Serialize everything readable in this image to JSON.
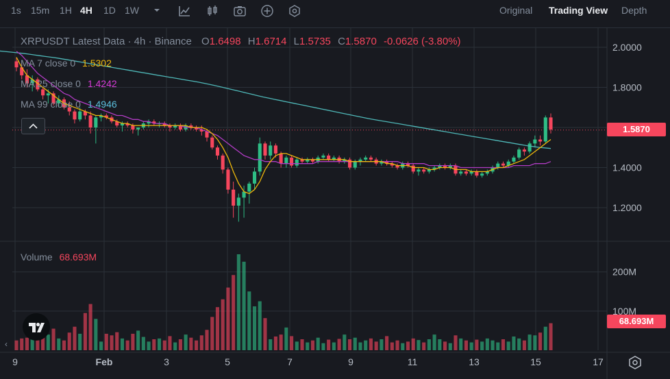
{
  "toolbar": {
    "intervals": [
      "1s",
      "15m",
      "1H",
      "4H",
      "1D",
      "1W"
    ],
    "active_interval": "4H",
    "views": [
      "Original",
      "Trading View",
      "Depth"
    ],
    "active_view": "Trading View"
  },
  "legend": {
    "title": "XRPUSDT Latest Data · 4h · Binance",
    "o_label": "O",
    "o": "1.6498",
    "h_label": "H",
    "h": "1.6714",
    "l_label": "L",
    "l": "1.5735",
    "c_label": "C",
    "c": "1.5870",
    "change": "-0.0626 (-3.80%)"
  },
  "ma": [
    {
      "label": "MA 7 close 0",
      "value": "1.5302",
      "color": "#f0b90b"
    },
    {
      "label": "MA 25 close 0",
      "value": "1.4242",
      "color": "#d63ad6"
    },
    {
      "label": "MA 99 close 0",
      "value": "1.4946",
      "color": "#5bc0de"
    }
  ],
  "volume": {
    "label": "Volume",
    "value": "68.693M"
  },
  "price_axis": [
    "2.0000",
    "1.8000",
    "1.6000",
    "1.4000",
    "1.2000"
  ],
  "current_price": "1.5870",
  "volume_axis": [
    "200M",
    "100M"
  ],
  "volume_tag": "68.693M",
  "x_axis": [
    "9",
    "Feb",
    "3",
    "5",
    "7",
    "9",
    "11",
    "13",
    "15",
    "17"
  ],
  "colors": {
    "up": "#2ebd85",
    "down": "#f6465d",
    "ma7": "#f0b90b",
    "ma25": "#b13cc4",
    "ma99": "#4fb8b8"
  },
  "chart_data": {
    "type": "candlestick",
    "symbol": "XRPUSDT",
    "interval": "4h",
    "ylim": [
      1.05,
      2.07
    ],
    "volume_ylim": [
      0,
      245
    ],
    "volume_unit": "M",
    "x_date_range": [
      "Jan 29",
      "Feb 15"
    ],
    "candles": [
      [
        1.93,
        1.95,
        1.88,
        1.9,
        25
      ],
      [
        1.9,
        1.92,
        1.84,
        1.86,
        30
      ],
      [
        1.86,
        1.89,
        1.8,
        1.82,
        32
      ],
      [
        1.82,
        1.86,
        1.78,
        1.84,
        40
      ],
      [
        1.84,
        1.85,
        1.78,
        1.79,
        35
      ],
      [
        1.79,
        1.8,
        1.74,
        1.76,
        52
      ],
      [
        1.76,
        1.79,
        1.72,
        1.77,
        40
      ],
      [
        1.77,
        1.78,
        1.71,
        1.72,
        55
      ],
      [
        1.72,
        1.76,
        1.7,
        1.74,
        30
      ],
      [
        1.74,
        1.75,
        1.69,
        1.7,
        25
      ],
      [
        1.7,
        1.73,
        1.66,
        1.68,
        45
      ],
      [
        1.68,
        1.69,
        1.62,
        1.64,
        60
      ],
      [
        1.64,
        1.7,
        1.63,
        1.68,
        42
      ],
      [
        1.68,
        1.69,
        1.64,
        1.66,
        95
      ],
      [
        1.66,
        1.68,
        1.57,
        1.6,
        118
      ],
      [
        1.6,
        1.66,
        1.52,
        1.65,
        80
      ],
      [
        1.65,
        1.67,
        1.63,
        1.66,
        22
      ],
      [
        1.66,
        1.67,
        1.64,
        1.65,
        42
      ],
      [
        1.65,
        1.66,
        1.62,
        1.63,
        38
      ],
      [
        1.63,
        1.64,
        1.6,
        1.61,
        46
      ],
      [
        1.61,
        1.63,
        1.58,
        1.62,
        30
      ],
      [
        1.62,
        1.63,
        1.6,
        1.61,
        25
      ],
      [
        1.61,
        1.62,
        1.57,
        1.59,
        42
      ],
      [
        1.59,
        1.6,
        1.56,
        1.6,
        50
      ],
      [
        1.6,
        1.63,
        1.59,
        1.62,
        34
      ],
      [
        1.62,
        1.64,
        1.6,
        1.63,
        22
      ],
      [
        1.63,
        1.64,
        1.61,
        1.62,
        28
      ],
      [
        1.62,
        1.63,
        1.6,
        1.62,
        30
      ],
      [
        1.62,
        1.63,
        1.6,
        1.61,
        25
      ],
      [
        1.61,
        1.62,
        1.58,
        1.6,
        36
      ],
      [
        1.6,
        1.62,
        1.59,
        1.61,
        20
      ],
      [
        1.61,
        1.62,
        1.58,
        1.59,
        28
      ],
      [
        1.59,
        1.62,
        1.58,
        1.61,
        40
      ],
      [
        1.61,
        1.62,
        1.59,
        1.6,
        32
      ],
      [
        1.6,
        1.61,
        1.58,
        1.59,
        25
      ],
      [
        1.59,
        1.61,
        1.56,
        1.58,
        38
      ],
      [
        1.58,
        1.59,
        1.53,
        1.55,
        52
      ],
      [
        1.55,
        1.56,
        1.49,
        1.5,
        85
      ],
      [
        1.5,
        1.51,
        1.44,
        1.46,
        110
      ],
      [
        1.46,
        1.47,
        1.37,
        1.39,
        130
      ],
      [
        1.39,
        1.4,
        1.27,
        1.29,
        160
      ],
      [
        1.29,
        1.33,
        1.15,
        1.21,
        192
      ],
      [
        1.21,
        1.27,
        1.13,
        1.25,
        245
      ],
      [
        1.25,
        1.31,
        1.15,
        1.28,
        226
      ],
      [
        1.28,
        1.33,
        1.22,
        1.32,
        150
      ],
      [
        1.32,
        1.4,
        1.29,
        1.38,
        112
      ],
      [
        1.38,
        1.55,
        1.36,
        1.52,
        125
      ],
      [
        1.52,
        1.53,
        1.44,
        1.46,
        82
      ],
      [
        1.46,
        1.53,
        1.44,
        1.51,
        28
      ],
      [
        1.51,
        1.52,
        1.45,
        1.47,
        35
      ],
      [
        1.47,
        1.48,
        1.4,
        1.42,
        40
      ],
      [
        1.42,
        1.46,
        1.4,
        1.45,
        58
      ],
      [
        1.45,
        1.46,
        1.4,
        1.41,
        36
      ],
      [
        1.41,
        1.45,
        1.4,
        1.44,
        22
      ],
      [
        1.44,
        1.45,
        1.42,
        1.43,
        28
      ],
      [
        1.43,
        1.45,
        1.42,
        1.44,
        20
      ],
      [
        1.44,
        1.45,
        1.42,
        1.43,
        25
      ],
      [
        1.43,
        1.46,
        1.42,
        1.45,
        32
      ],
      [
        1.45,
        1.47,
        1.44,
        1.46,
        18
      ],
      [
        1.46,
        1.47,
        1.43,
        1.44,
        27
      ],
      [
        1.44,
        1.46,
        1.43,
        1.45,
        20
      ],
      [
        1.45,
        1.46,
        1.42,
        1.43,
        29
      ],
      [
        1.43,
        1.45,
        1.42,
        1.44,
        40
      ],
      [
        1.44,
        1.45,
        1.39,
        1.4,
        28
      ],
      [
        1.4,
        1.44,
        1.39,
        1.43,
        32
      ],
      [
        1.43,
        1.45,
        1.41,
        1.44,
        20
      ],
      [
        1.44,
        1.46,
        1.43,
        1.45,
        25
      ],
      [
        1.45,
        1.46,
        1.43,
        1.44,
        30
      ],
      [
        1.44,
        1.45,
        1.41,
        1.42,
        22
      ],
      [
        1.42,
        1.44,
        1.41,
        1.43,
        28
      ],
      [
        1.43,
        1.44,
        1.41,
        1.42,
        36
      ],
      [
        1.42,
        1.43,
        1.4,
        1.41,
        20
      ],
      [
        1.41,
        1.42,
        1.39,
        1.4,
        25
      ],
      [
        1.4,
        1.43,
        1.39,
        1.42,
        18
      ],
      [
        1.42,
        1.43,
        1.4,
        1.41,
        22
      ],
      [
        1.41,
        1.42,
        1.37,
        1.38,
        30
      ],
      [
        1.38,
        1.4,
        1.36,
        1.39,
        26
      ],
      [
        1.39,
        1.4,
        1.37,
        1.38,
        20
      ],
      [
        1.38,
        1.4,
        1.37,
        1.39,
        28
      ],
      [
        1.39,
        1.41,
        1.38,
        1.4,
        40
      ],
      [
        1.4,
        1.42,
        1.39,
        1.41,
        28
      ],
      [
        1.41,
        1.42,
        1.39,
        1.4,
        22
      ],
      [
        1.4,
        1.42,
        1.39,
        1.41,
        18
      ],
      [
        1.41,
        1.42,
        1.36,
        1.37,
        38
      ],
      [
        1.37,
        1.39,
        1.36,
        1.38,
        30
      ],
      [
        1.38,
        1.39,
        1.36,
        1.37,
        25
      ],
      [
        1.37,
        1.39,
        1.36,
        1.38,
        20
      ],
      [
        1.38,
        1.39,
        1.35,
        1.36,
        27
      ],
      [
        1.36,
        1.38,
        1.35,
        1.37,
        22
      ],
      [
        1.37,
        1.39,
        1.36,
        1.38,
        30
      ],
      [
        1.38,
        1.41,
        1.37,
        1.4,
        25
      ],
      [
        1.4,
        1.43,
        1.39,
        1.42,
        20
      ],
      [
        1.42,
        1.43,
        1.4,
        1.41,
        28
      ],
      [
        1.41,
        1.44,
        1.4,
        1.43,
        22
      ],
      [
        1.43,
        1.46,
        1.42,
        1.45,
        35
      ],
      [
        1.45,
        1.5,
        1.44,
        1.49,
        30
      ],
      [
        1.49,
        1.5,
        1.46,
        1.48,
        25
      ],
      [
        1.48,
        1.53,
        1.47,
        1.52,
        40
      ],
      [
        1.52,
        1.56,
        1.5,
        1.54,
        38
      ],
      [
        1.54,
        1.56,
        1.51,
        1.53,
        45
      ],
      [
        1.53,
        1.66,
        1.52,
        1.65,
        60
      ],
      [
        1.65,
        1.67,
        1.57,
        1.59,
        69
      ]
    ],
    "ma7": [
      1.95,
      1.9,
      1.86,
      1.84,
      1.82,
      1.8,
      1.78,
      1.76,
      1.74,
      1.72,
      1.71,
      1.7,
      1.69,
      1.68,
      1.67,
      1.66,
      1.66,
      1.65,
      1.64,
      1.63,
      1.62,
      1.62,
      1.61,
      1.61,
      1.61,
      1.61,
      1.61,
      1.61,
      1.61,
      1.61,
      1.61,
      1.61,
      1.61,
      1.6,
      1.6,
      1.6,
      1.59,
      1.57,
      1.54,
      1.5,
      1.45,
      1.38,
      1.32,
      1.28,
      1.27,
      1.29,
      1.33,
      1.39,
      1.43,
      1.46,
      1.47,
      1.47,
      1.46,
      1.45,
      1.44,
      1.44,
      1.44,
      1.44,
      1.44,
      1.44,
      1.44,
      1.44,
      1.44,
      1.43,
      1.43,
      1.43,
      1.43,
      1.43,
      1.43,
      1.43,
      1.42,
      1.42,
      1.41,
      1.41,
      1.41,
      1.4,
      1.4,
      1.4,
      1.39,
      1.39,
      1.4,
      1.4,
      1.4,
      1.39,
      1.39,
      1.39,
      1.38,
      1.38,
      1.38,
      1.38,
      1.39,
      1.4,
      1.4,
      1.41,
      1.42,
      1.43,
      1.44,
      1.46,
      1.48,
      1.5,
      1.52,
      1.54
    ],
    "ma25": [
      1.98,
      1.96,
      1.93,
      1.9,
      1.87,
      1.85,
      1.83,
      1.81,
      1.79,
      1.77,
      1.76,
      1.74,
      1.73,
      1.72,
      1.71,
      1.7,
      1.69,
      1.68,
      1.67,
      1.66,
      1.66,
      1.65,
      1.64,
      1.64,
      1.63,
      1.63,
      1.62,
      1.62,
      1.62,
      1.61,
      1.61,
      1.61,
      1.6,
      1.6,
      1.6,
      1.59,
      1.58,
      1.57,
      1.56,
      1.54,
      1.52,
      1.5,
      1.48,
      1.46,
      1.45,
      1.44,
      1.44,
      1.43,
      1.43,
      1.43,
      1.42,
      1.42,
      1.42,
      1.42,
      1.42,
      1.42,
      1.42,
      1.43,
      1.43,
      1.43,
      1.43,
      1.43,
      1.43,
      1.43,
      1.43,
      1.43,
      1.43,
      1.43,
      1.43,
      1.43,
      1.43,
      1.43,
      1.43,
      1.42,
      1.42,
      1.42,
      1.42,
      1.42,
      1.41,
      1.41,
      1.41,
      1.41,
      1.41,
      1.41,
      1.4,
      1.4,
      1.4,
      1.4,
      1.4,
      1.4,
      1.4,
      1.4,
      1.4,
      1.4,
      1.41,
      1.41,
      1.41,
      1.41,
      1.42,
      1.42,
      1.42,
      1.43
    ],
    "ma99": [
      1.985,
      1.982,
      1.979,
      1.976,
      1.973,
      1.97,
      1.966,
      1.962,
      1.958,
      1.954,
      1.95,
      1.946,
      1.941,
      1.936,
      1.931,
      1.926,
      1.921,
      1.916,
      1.911,
      1.906,
      1.901,
      1.896,
      1.891,
      1.886,
      1.881,
      1.876,
      1.871,
      1.866,
      1.861,
      1.856,
      1.851,
      1.846,
      1.841,
      1.836,
      1.831,
      1.826,
      1.82,
      1.814,
      1.808,
      1.801,
      1.794,
      1.787,
      1.78,
      1.773,
      1.766,
      1.759,
      1.752,
      1.746,
      1.74,
      1.734,
      1.728,
      1.722,
      1.716,
      1.71,
      1.704,
      1.698,
      1.692,
      1.686,
      1.68,
      1.674,
      1.668,
      1.662,
      1.656,
      1.65,
      1.644,
      1.639,
      1.634,
      1.629,
      1.624,
      1.619,
      1.614,
      1.609,
      1.604,
      1.599,
      1.594,
      1.589,
      1.584,
      1.579,
      1.574,
      1.569,
      1.564,
      1.559,
      1.554,
      1.549,
      1.544,
      1.539,
      1.534,
      1.529,
      1.524,
      1.519,
      1.514,
      1.509,
      1.505,
      1.501,
      1.498,
      1.495
    ]
  }
}
